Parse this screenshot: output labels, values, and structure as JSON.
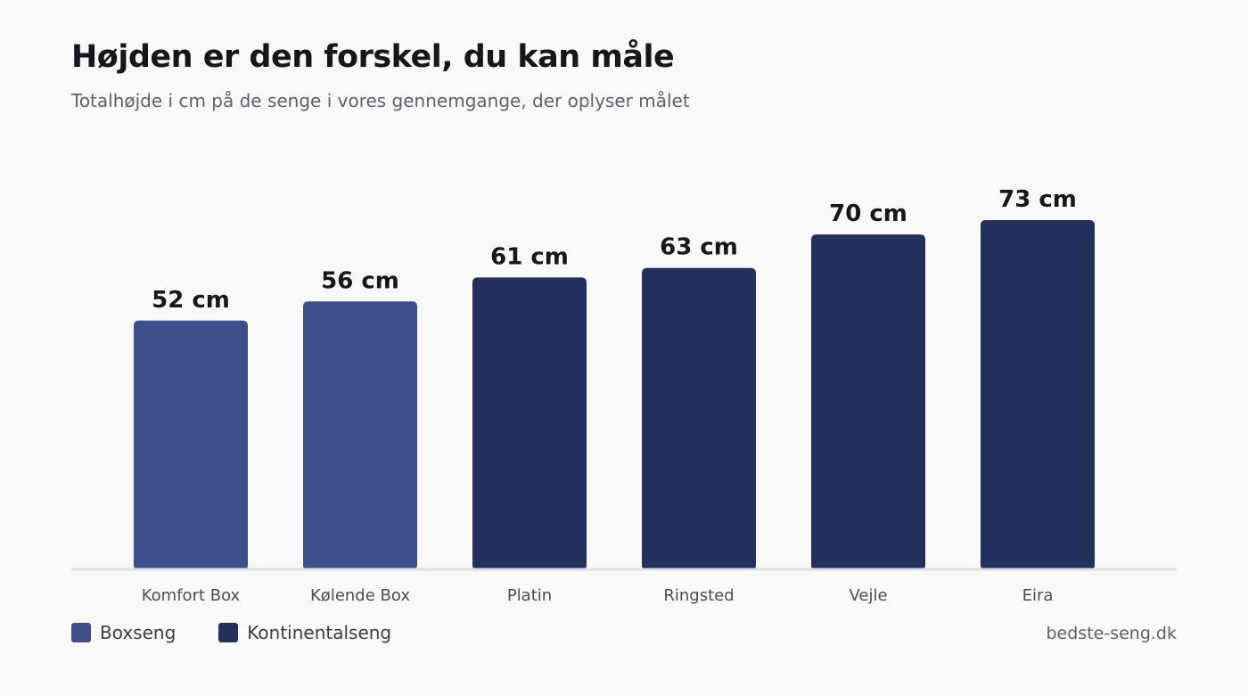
{
  "colors": {
    "boxseng": "#3e4f8b",
    "kontinentalseng": "#232f5c",
    "baseline": "#dfe0e4",
    "value_label": "#16171d",
    "category_label": "#4a4d5a"
  },
  "chart_data": {
    "type": "bar",
    "title": "Højden er den forskel, du kan måle",
    "subtitle": "Totalhøjde i cm på de senge i vores gennemgange, der oplyser målet",
    "xlabel": "",
    "ylabel": "",
    "unit": "cm",
    "ylim": [
      0,
      80
    ],
    "grid": false,
    "legend_position": "bottom-left",
    "categories": [
      "Komfort Box",
      "Kølende Box",
      "Platin",
      "Ringsted",
      "Vejle",
      "Eira"
    ],
    "values": [
      52,
      56,
      61,
      63,
      70,
      73
    ],
    "value_labels": [
      "52 cm",
      "56 cm",
      "61 cm",
      "63 cm",
      "70 cm",
      "73 cm"
    ],
    "groups": [
      "Boxseng",
      "Boxseng",
      "Kontinentalseng",
      "Kontinentalseng",
      "Kontinentalseng",
      "Kontinentalseng"
    ],
    "legend": [
      "Boxseng",
      "Kontinentalseng"
    ]
  },
  "source": "bedste-seng.dk"
}
